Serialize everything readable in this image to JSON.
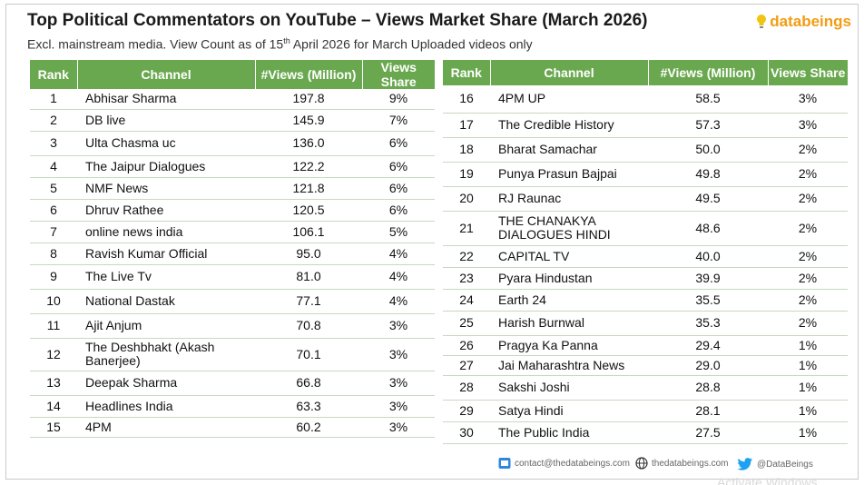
{
  "title": "Top Political Commentators on YouTube – Views Market Share (March 2026)",
  "subtitle": {
    "before": "Excl. mainstream media. View Count as of 15",
    "sup": "th",
    "after": " April 2026 for March Uploaded videos only"
  },
  "logo": {
    "text": "databeings",
    "icon": "bulb-icon",
    "color": "#f39c12"
  },
  "colors": {
    "header_bg": "#6aa84f",
    "header_text": "#ffffff"
  },
  "table": {
    "headers": [
      "Rank",
      "Channel",
      "#Views (Million)",
      "Views Share"
    ],
    "left_rows": [
      {
        "rank": "1",
        "channel": "Abhisar Sharma",
        "views": "197.8",
        "share": "9%"
      },
      {
        "rank": "2",
        "channel": "DB live",
        "views": "145.9",
        "share": "7%"
      },
      {
        "rank": "3",
        "channel": "Ulta Chasma uc",
        "views": "136.0",
        "share": "6%"
      },
      {
        "rank": "4",
        "channel": "The Jaipur Dialogues",
        "views": "122.2",
        "share": "6%"
      },
      {
        "rank": "5",
        "channel": "NMF News",
        "views": "121.8",
        "share": "6%"
      },
      {
        "rank": "6",
        "channel": "Dhruv Rathee",
        "views": "120.5",
        "share": "6%"
      },
      {
        "rank": "7",
        "channel": "online news india",
        "views": "106.1",
        "share": "5%"
      },
      {
        "rank": "8",
        "channel": "Ravish Kumar Official",
        "views": "95.0",
        "share": "4%"
      },
      {
        "rank": "9",
        "channel": "The Live Tv",
        "views": "81.0",
        "share": "4%"
      },
      {
        "rank": "10",
        "channel": "National Dastak",
        "views": "77.1",
        "share": "4%"
      },
      {
        "rank": "11",
        "channel": "Ajit Anjum",
        "views": "70.8",
        "share": "3%"
      },
      {
        "rank": "12",
        "channel": "The Deshbhakt (Akash Banerjee)",
        "views": "70.1",
        "share": "3%"
      },
      {
        "rank": "13",
        "channel": "Deepak Sharma",
        "views": "66.8",
        "share": "3%"
      },
      {
        "rank": "14",
        "channel": "Headlines India",
        "views": "63.3",
        "share": "3%"
      },
      {
        "rank": "15",
        "channel": "4PM",
        "views": "60.2",
        "share": "3%"
      }
    ],
    "right_rows": [
      {
        "rank": "16",
        "channel": "4PM UP",
        "views": "58.5",
        "share": "3%"
      },
      {
        "rank": "17",
        "channel": "The Credible History",
        "views": "57.3",
        "share": "3%"
      },
      {
        "rank": "18",
        "channel": "Bharat Samachar",
        "views": "50.0",
        "share": "2%"
      },
      {
        "rank": "19",
        "channel": "Punya Prasun Bajpai",
        "views": "49.8",
        "share": "2%"
      },
      {
        "rank": "20",
        "channel": "RJ Raunac",
        "views": "49.5",
        "share": "2%"
      },
      {
        "rank": "21",
        "channel": "THE CHANAKYA DIALOGUES HINDI",
        "views": "48.6",
        "share": "2%"
      },
      {
        "rank": "22",
        "channel": "CAPITAL TV",
        "views": "40.0",
        "share": "2%"
      },
      {
        "rank": "23",
        "channel": "Pyara Hindustan",
        "views": "39.9",
        "share": "2%"
      },
      {
        "rank": "24",
        "channel": "Earth 24",
        "views": "35.5",
        "share": "2%"
      },
      {
        "rank": "25",
        "channel": "Harish Burnwal",
        "views": "35.3",
        "share": "2%"
      },
      {
        "rank": "26",
        "channel": "Pragya Ka Panna",
        "views": "29.4",
        "share": "1%"
      },
      {
        "rank": "27",
        "channel": "Jai Maharashtra News",
        "views": "29.0",
        "share": "1%"
      },
      {
        "rank": "28",
        "channel": "Sakshi Joshi",
        "views": "28.8",
        "share": "1%"
      },
      {
        "rank": "29",
        "channel": "Satya Hindi",
        "views": "28.1",
        "share": "1%"
      },
      {
        "rank": "30",
        "channel": "The Public India",
        "views": "27.5",
        "share": "1%"
      }
    ]
  },
  "footer": {
    "email": "contact@thedatabeings.com",
    "email_icon": "mail-icon",
    "website": "thedatabeings.com",
    "website_icon": "globe-icon",
    "twitter": "@DataBeings",
    "twitter_icon": "twitter-icon"
  },
  "watermark": "Activate Windows"
}
